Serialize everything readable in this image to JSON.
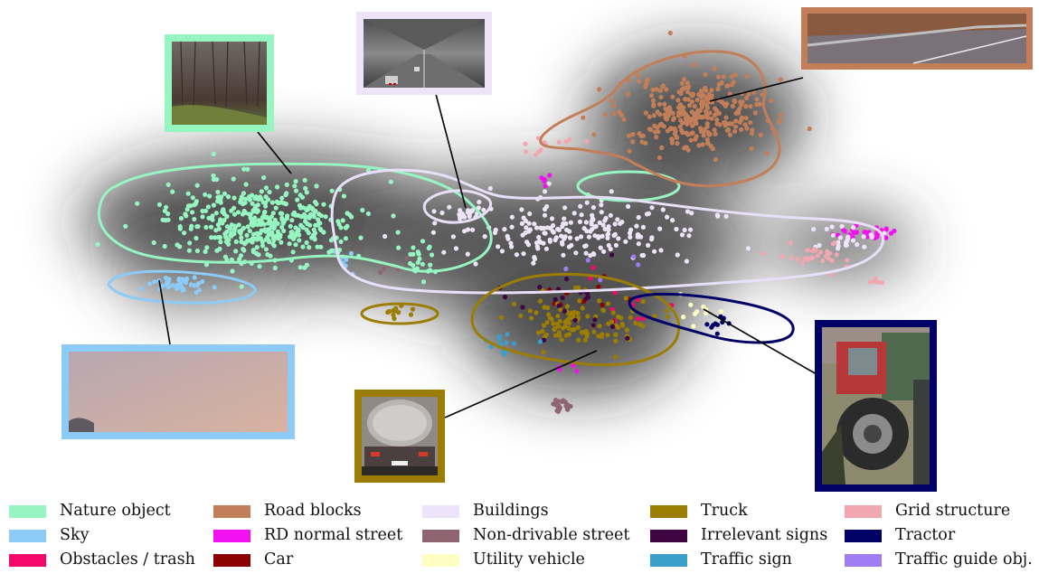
{
  "chart_data": {
    "type": "scatter",
    "title": "",
    "xlabel": "",
    "ylabel": "",
    "grid": false,
    "axes_visible": false,
    "legend_placement": "bottom",
    "series": [
      {
        "name": "Nature object",
        "color": "#96f5c0",
        "clusters": [
          {
            "x": 290,
            "y": 245,
            "spread": [
              95,
              40
            ],
            "n": 420
          },
          {
            "x": 465,
            "y": 285,
            "spread": [
              20,
              20
            ],
            "n": 25
          }
        ]
      },
      {
        "name": "Sky",
        "color": "#8ccbf6",
        "clusters": [
          {
            "x": 200,
            "y": 315,
            "spread": [
              28,
              8
            ],
            "n": 45
          },
          {
            "x": 385,
            "y": 290,
            "spread": [
              15,
              10
            ],
            "n": 8
          }
        ]
      },
      {
        "name": "Obstacles / trash",
        "color": "#f5086c",
        "clusters": [
          {
            "x": 700,
            "y": 330,
            "spread": [
              60,
              30
            ],
            "n": 10
          }
        ]
      },
      {
        "name": "Road blocks",
        "color": "#c27e58",
        "clusters": [
          {
            "x": 765,
            "y": 125,
            "spread": [
              75,
              40
            ],
            "n": 300
          }
        ]
      },
      {
        "name": "RD normal street",
        "color": "#f411f1",
        "clusters": [
          {
            "x": 955,
            "y": 258,
            "spread": [
              32,
              7
            ],
            "n": 30
          },
          {
            "x": 630,
            "y": 405,
            "spread": [
              10,
              5
            ],
            "n": 4
          },
          {
            "x": 600,
            "y": 200,
            "spread": [
              12,
              10
            ],
            "n": 6
          }
        ]
      },
      {
        "name": "Car",
        "color": "#8b0000",
        "clusters": [
          {
            "x": 650,
            "y": 320,
            "spread": [
              60,
              30
            ],
            "n": 10
          }
        ]
      },
      {
        "name": "Buildings",
        "color": "#eee4fa",
        "clusters": [
          {
            "x": 640,
            "y": 255,
            "spread": [
              130,
              30
            ],
            "n": 200
          },
          {
            "x": 520,
            "y": 235,
            "spread": [
              15,
              6
            ],
            "n": 20
          },
          {
            "x": 935,
            "y": 265,
            "spread": [
              30,
              12
            ],
            "n": 25
          }
        ]
      },
      {
        "name": "Non-drivable street",
        "color": "#8d6470",
        "clusters": [
          {
            "x": 620,
            "y": 448,
            "spread": [
              12,
              6
            ],
            "n": 20
          },
          {
            "x": 440,
            "y": 295,
            "spread": [
              20,
              10
            ],
            "n": 5
          }
        ]
      },
      {
        "name": "Utility vehicle",
        "color": "#fefdc2",
        "clusters": [
          {
            "x": 770,
            "y": 345,
            "spread": [
              25,
              12
            ],
            "n": 10
          }
        ]
      },
      {
        "name": "Truck",
        "color": "#9b7d04",
        "clusters": [
          {
            "x": 640,
            "y": 355,
            "spread": [
              65,
              28
            ],
            "n": 110
          },
          {
            "x": 440,
            "y": 345,
            "spread": [
              18,
              5
            ],
            "n": 12
          }
        ]
      },
      {
        "name": "Irrelevant signs",
        "color": "#3f0442",
        "clusters": [
          {
            "x": 640,
            "y": 330,
            "spread": [
              60,
              35
            ],
            "n": 22
          }
        ]
      },
      {
        "name": "Grid structure",
        "color": "#f2a6b0",
        "clusters": [
          {
            "x": 900,
            "y": 280,
            "spread": [
              40,
              15
            ],
            "n": 30
          },
          {
            "x": 970,
            "y": 312,
            "spread": [
              10,
              3
            ],
            "n": 6
          },
          {
            "x": 600,
            "y": 160,
            "spread": [
              30,
              15
            ],
            "n": 12
          }
        ]
      },
      {
        "name": "Tractor",
        "color": "#010066",
        "clusters": [
          {
            "x": 790,
            "y": 355,
            "spread": [
              20,
              10
            ],
            "n": 10
          }
        ]
      },
      {
        "name": "Traffic sign",
        "color": "#3b9fcb",
        "clusters": [
          {
            "x": 560,
            "y": 380,
            "spread": [
              30,
              20
            ],
            "n": 12
          }
        ]
      },
      {
        "name": "Traffic guide obj.",
        "color": "#a07df2",
        "clusters": [
          {
            "x": 700,
            "y": 300,
            "spread": [
              60,
              25
            ],
            "n": 5
          }
        ]
      }
    ],
    "contours": [
      {
        "series": "Nature object",
        "shape": "nature"
      },
      {
        "series": "Nature object",
        "shape": "nature-small"
      },
      {
        "series": "Sky",
        "shape": "sky"
      },
      {
        "series": "Road blocks",
        "shape": "road"
      },
      {
        "series": "Buildings",
        "shape": "buildings"
      },
      {
        "series": "Truck",
        "shape": "truck"
      },
      {
        "series": "Truck",
        "shape": "truck-small"
      },
      {
        "series": "Tractor",
        "shape": "tractor"
      }
    ],
    "thumbnails": [
      {
        "series": "Nature object",
        "scene": "forest"
      },
      {
        "series": "Buildings",
        "scene": "tunnel"
      },
      {
        "series": "Road blocks",
        "scene": "guardrail"
      },
      {
        "series": "Sky",
        "scene": "sky"
      },
      {
        "series": "Truck",
        "scene": "tanker-truck"
      },
      {
        "series": "Tractor",
        "scene": "tractor"
      }
    ]
  },
  "legend": {
    "columns": [
      [
        "Nature object",
        "Sky",
        "Obstacles / trash"
      ],
      [
        "Road blocks",
        "RD normal street",
        "Car"
      ],
      [
        "Buildings",
        "Non-drivable street",
        "Utility vehicle"
      ],
      [
        "Truck",
        "Irrelevant signs",
        "Traffic sign"
      ],
      [
        "Grid structure",
        "Tractor",
        "Traffic guide obj."
      ]
    ]
  }
}
